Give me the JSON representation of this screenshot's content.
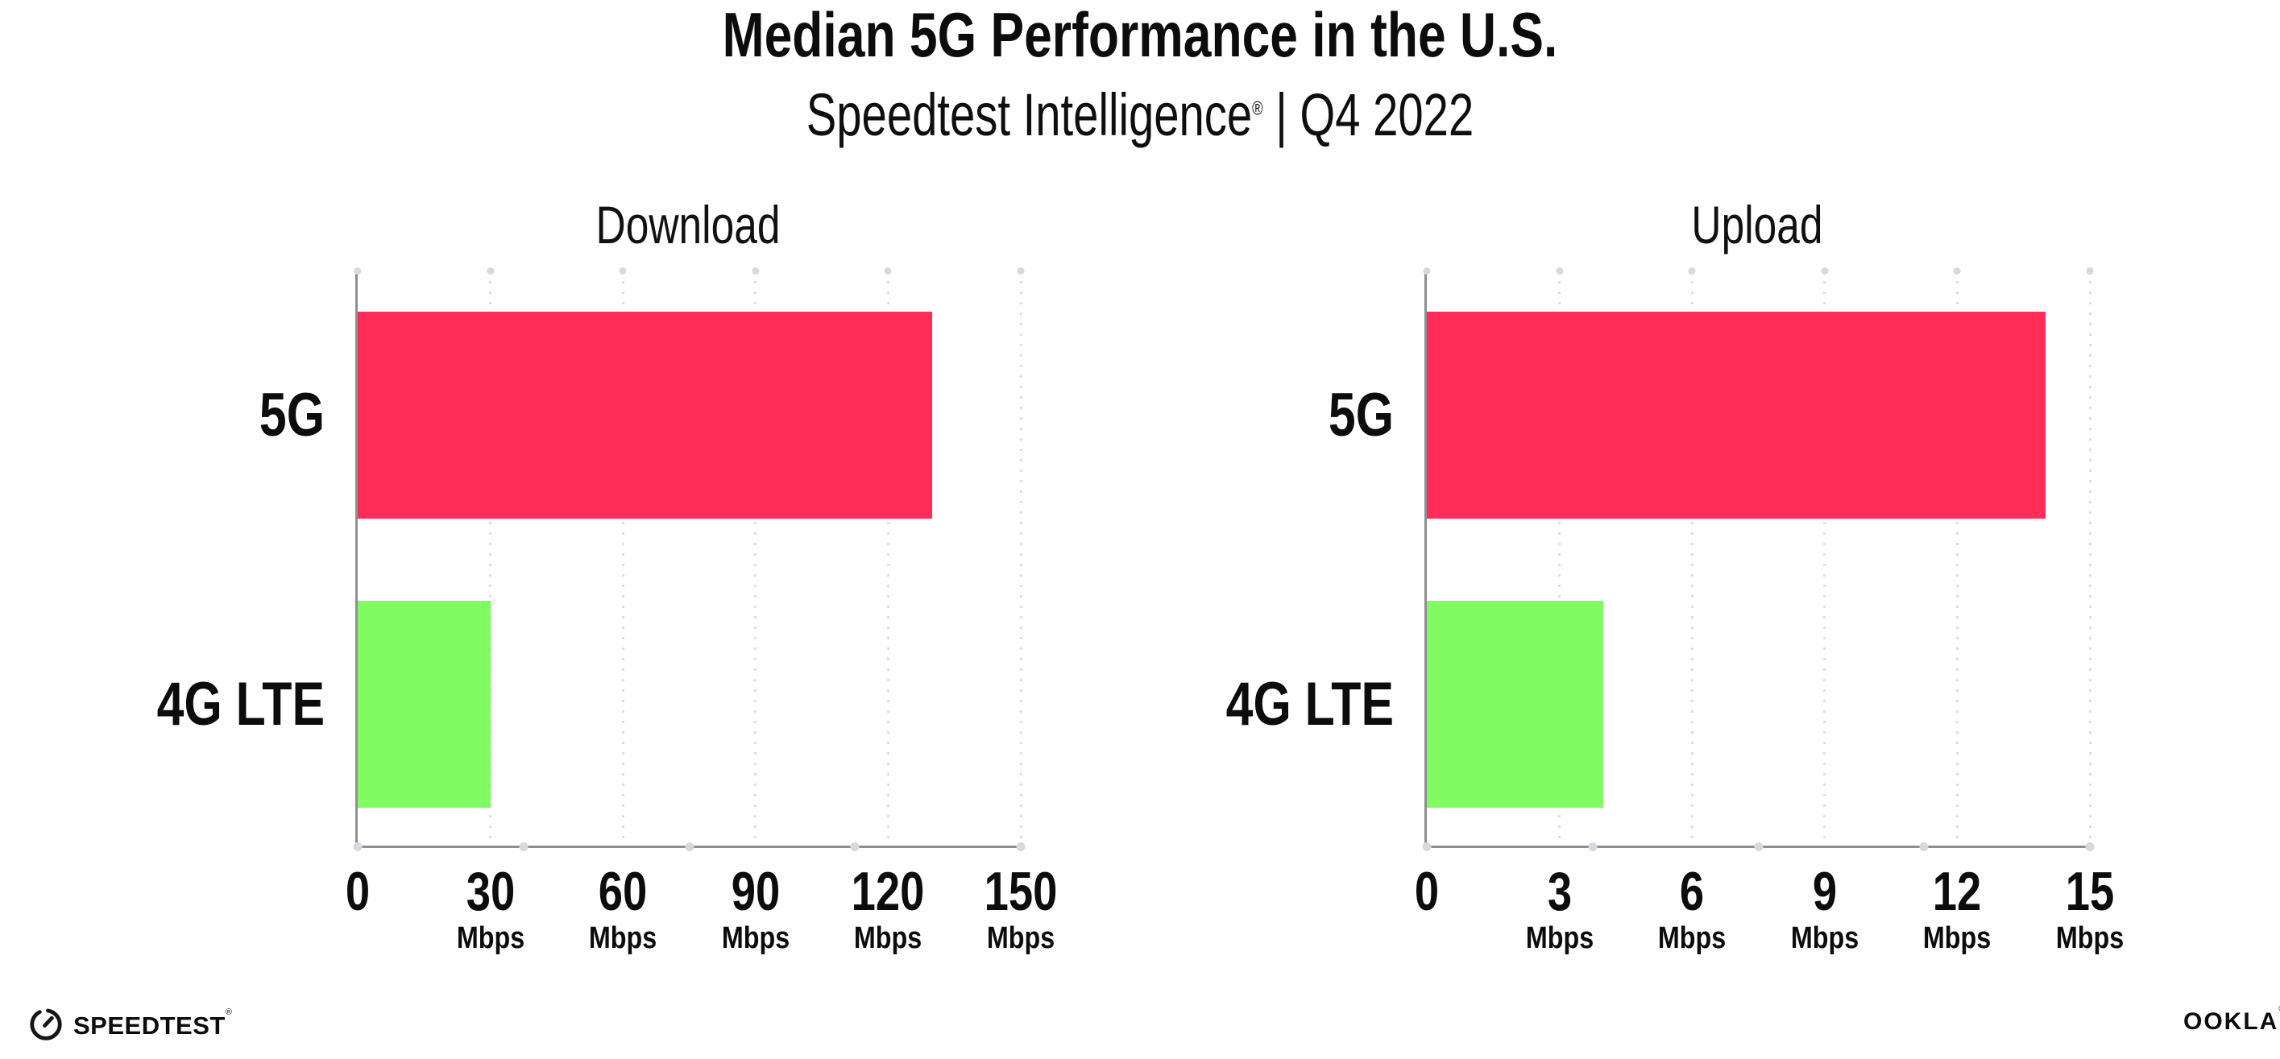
{
  "header": {
    "title": "Median 5G Performance in the U.S.",
    "subtitle_brand": "Speedtest Intelligence",
    "subtitle_reg": "®",
    "subtitle_rest": " | Q4 2022"
  },
  "colors": {
    "bar_5g": "#ff2d58",
    "bar_4g_lte": "#80fb62",
    "gridline": "#dcdde8",
    "axis": "#8e8e93",
    "marker_dot": "#d7d8e2",
    "text": "#0c0c0d"
  },
  "chart_data": [
    {
      "type": "bar",
      "orientation": "horizontal",
      "title": "Download",
      "categories": [
        "5G",
        "4G LTE"
      ],
      "values": [
        130,
        30
      ],
      "bar_colors": [
        "#ff2d58",
        "#80fb62"
      ],
      "xlabel": "",
      "ylabel": "",
      "xlim": [
        0,
        150
      ],
      "ticks": [
        0,
        30,
        60,
        90,
        120,
        150
      ],
      "tick_unit_label": "Mbps",
      "grid": "dotted-vertical",
      "legend": "none"
    },
    {
      "type": "bar",
      "orientation": "horizontal",
      "title": "Upload",
      "categories": [
        "5G",
        "4G LTE"
      ],
      "values": [
        14,
        4
      ],
      "bar_colors": [
        "#ff2d58",
        "#80fb62"
      ],
      "xlabel": "",
      "ylabel": "",
      "xlim": [
        0,
        15
      ],
      "ticks": [
        0,
        3,
        6,
        9,
        12,
        15
      ],
      "tick_unit_label": "Mbps",
      "grid": "dotted-vertical",
      "legend": "none"
    }
  ],
  "footer": {
    "speedtest_icon": "speedometer-gauge-icon",
    "speedtest_label": "SPEEDTEST",
    "speedtest_reg": "®",
    "ookla_label": "OOKLA",
    "ookla_reg": "®"
  }
}
